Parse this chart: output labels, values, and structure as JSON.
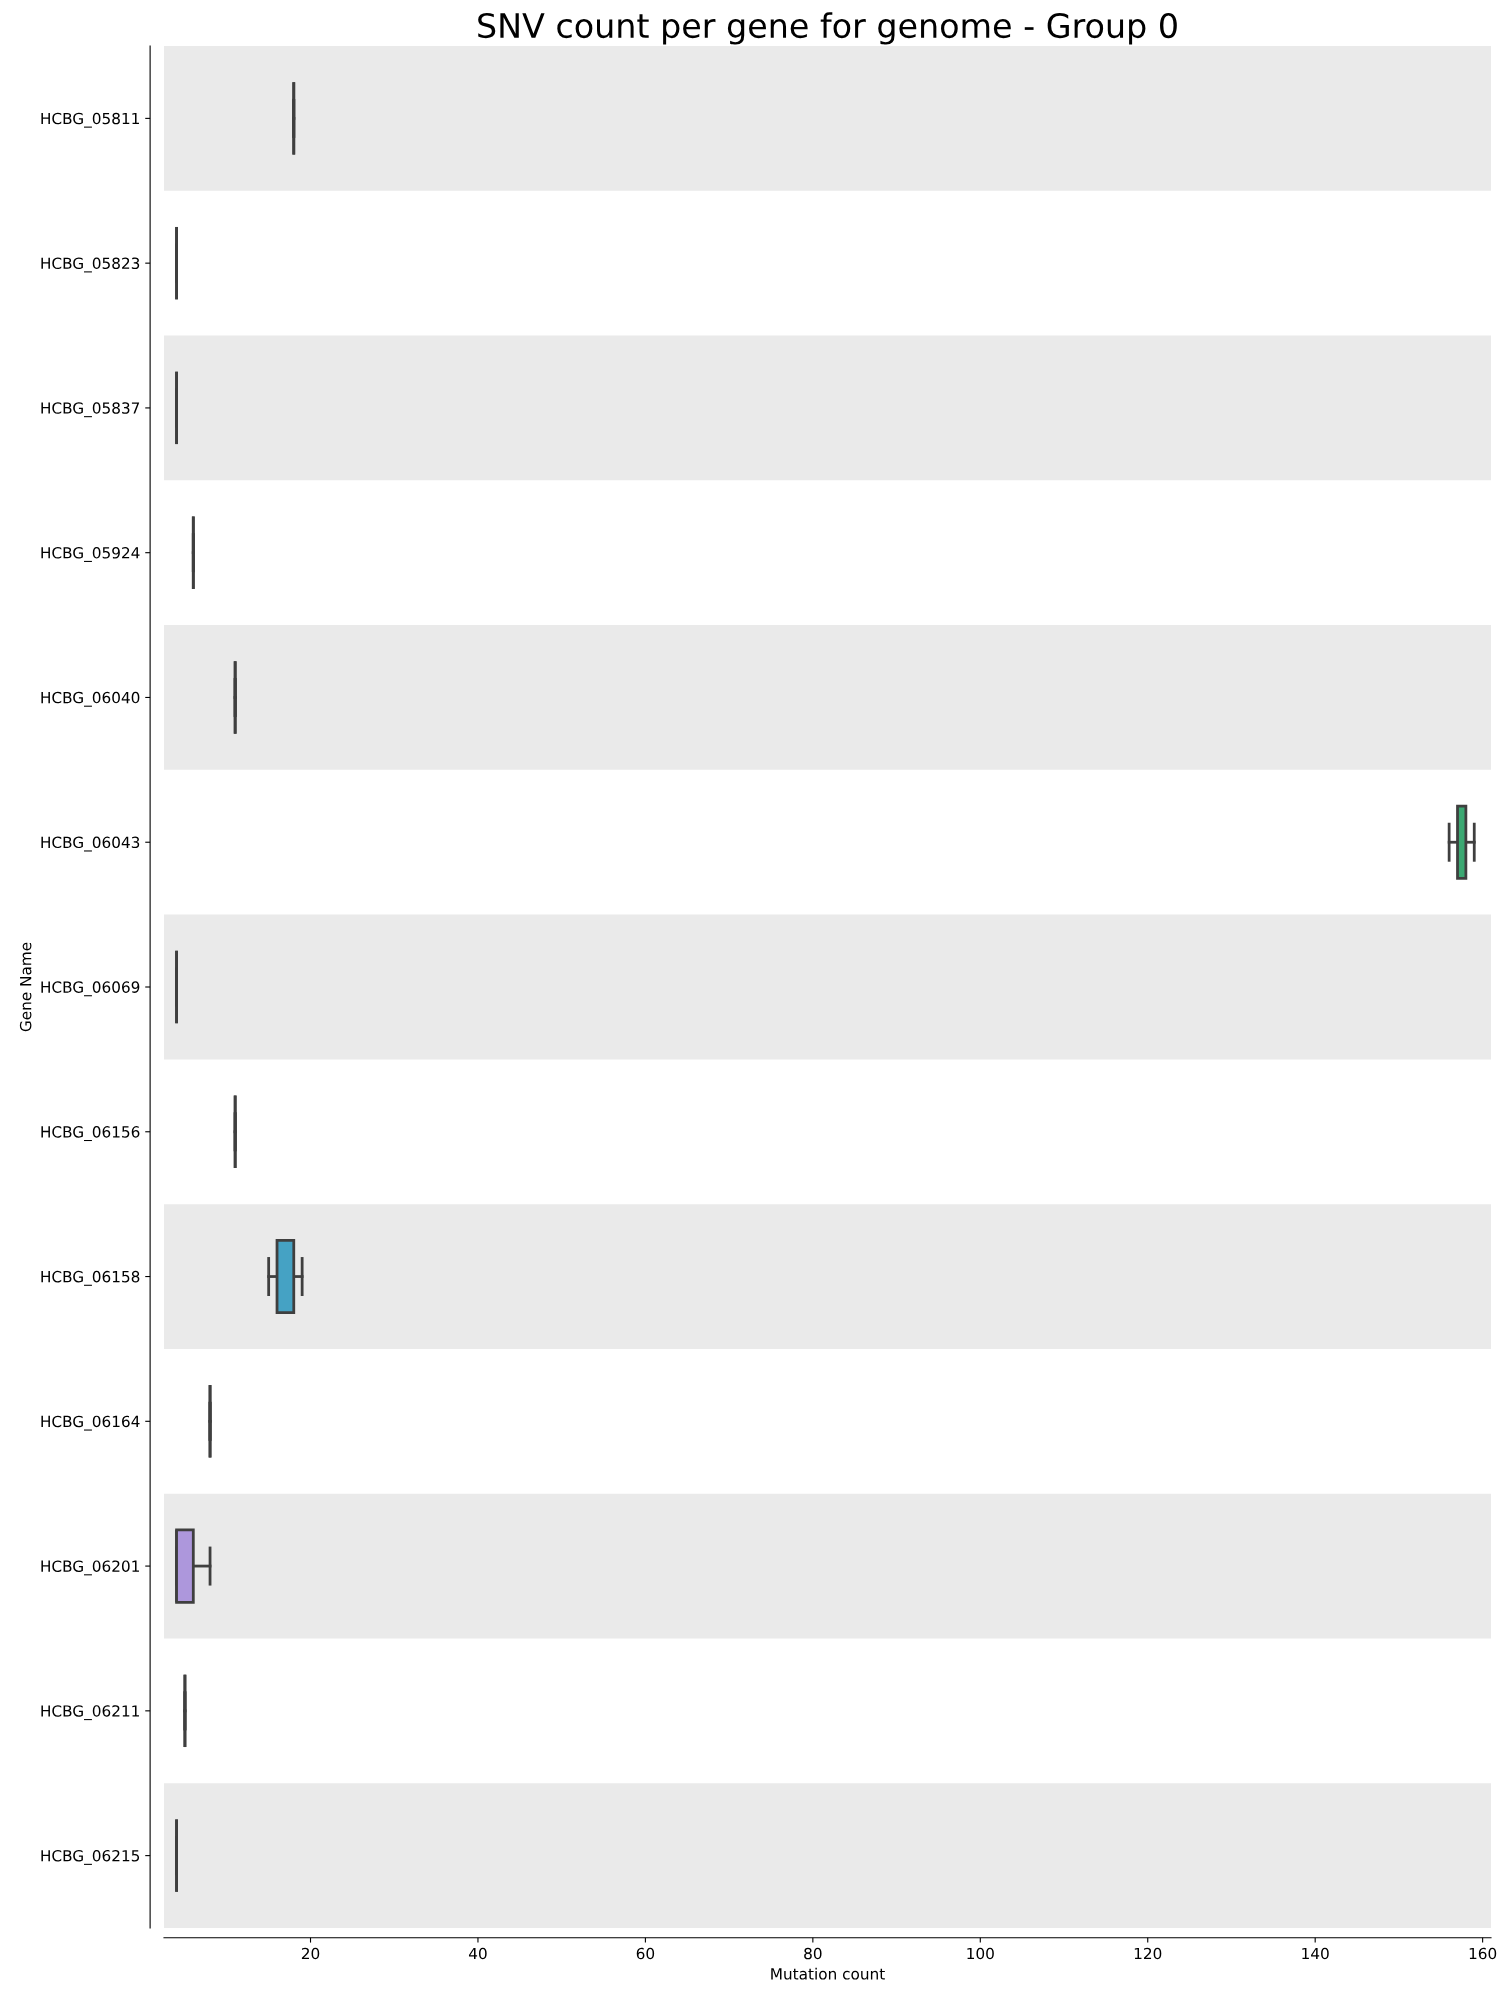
{
  "chart_data": {
    "type": "box",
    "orientation": "horizontal",
    "title": "SNV count per gene for genome - Group 0",
    "xlabel": "Mutation count",
    "ylabel": "Gene Name",
    "categories": [
      "HCBG_05811",
      "HCBG_05823",
      "HCBG_05837",
      "HCBG_05924",
      "HCBG_06040",
      "HCBG_06043",
      "HCBG_06069",
      "HCBG_06156",
      "HCBG_06158",
      "HCBG_06164",
      "HCBG_06201",
      "HCBG_06211",
      "HCBG_06215"
    ],
    "colors": [
      null,
      null,
      null,
      null,
      null,
      "#3ba872",
      null,
      null,
      "#45a2c4",
      null,
      "#ad97dc",
      null,
      null
    ],
    "boxes": [
      {
        "low": 18,
        "q1": 18,
        "median": 18,
        "q3": 18,
        "high": 18
      },
      {
        "low": 4,
        "q1": 4,
        "median": 4,
        "q3": 4,
        "high": 4
      },
      {
        "low": 4,
        "q1": 4,
        "median": 4,
        "q3": 4,
        "high": 4
      },
      {
        "low": 6,
        "q1": 6,
        "median": 6,
        "q3": 6,
        "high": 6
      },
      {
        "low": 11,
        "q1": 11,
        "median": 11,
        "q3": 11,
        "high": 11
      },
      {
        "low": 156,
        "q1": 157,
        "median": 157.5,
        "q3": 158,
        "high": 159
      },
      {
        "low": 4,
        "q1": 4,
        "median": 4,
        "q3": 4,
        "high": 4
      },
      {
        "low": 11,
        "q1": 11,
        "median": 11,
        "q3": 11,
        "high": 11
      },
      {
        "low": 15,
        "q1": 16,
        "median": 17,
        "q3": 18,
        "high": 19
      },
      {
        "low": 8,
        "q1": 8,
        "median": 8,
        "q3": 8,
        "high": 8
      },
      {
        "low": 4,
        "q1": 4,
        "median": 4,
        "q3": 6,
        "high": 8
      },
      {
        "low": 5,
        "q1": 5,
        "median": 5,
        "q3": 5,
        "high": 5
      },
      {
        "low": 4,
        "q1": 4,
        "median": 4,
        "q3": 4,
        "high": 4
      }
    ],
    "xlim": [
      2.5,
      161
    ],
    "xticks": [
      20,
      40,
      60,
      80,
      100,
      120,
      140,
      160
    ],
    "grid": false
  }
}
